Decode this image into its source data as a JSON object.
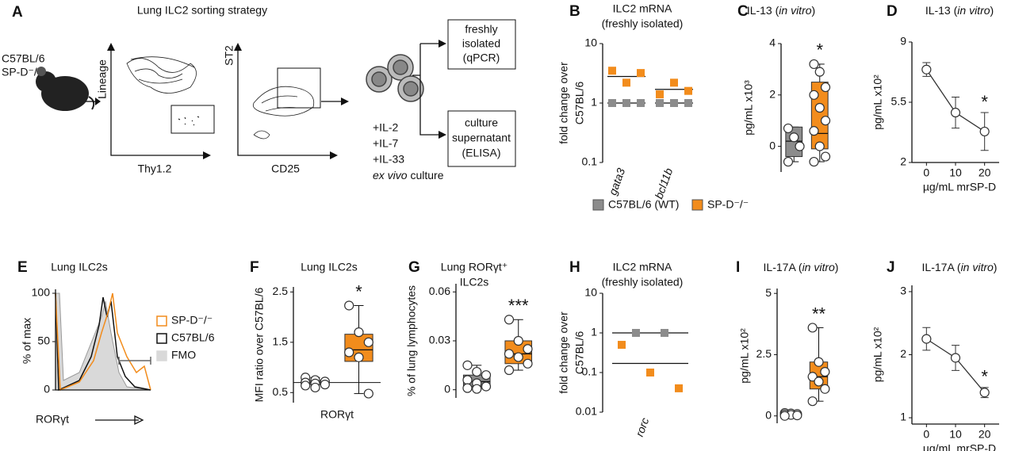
{
  "panel_a": {
    "label": "A",
    "title": "Lung ILC2 sorting strategy",
    "mouse": [
      "C57BL/6",
      "SP-D⁻/⁻"
    ],
    "plot1": {
      "y": "Lineage",
      "x": "Thy1.2"
    },
    "plot2": {
      "y": "ST2",
      "x": "CD25"
    },
    "culture": [
      "+IL-2",
      "+IL-7",
      "+IL-33"
    ],
    "culture_note": [
      "ex vivo",
      " culture"
    ],
    "box1": [
      "freshly",
      "isolated",
      "(qPCR)"
    ],
    "box2": [
      "culture",
      "supernatant",
      "(ELISA)"
    ]
  },
  "panel_e": {
    "label": "E",
    "title": "Lung ILC2s",
    "ylabel": "% of max",
    "xlabel": "RORγt",
    "yticks": [
      0,
      50,
      100
    ],
    "legend": [
      {
        "name": "SP-D⁻/⁻",
        "color": "#f28c1c"
      },
      {
        "name": "C57BL/6",
        "color": "#111111"
      },
      {
        "name": "FMO",
        "color": "#d9d9d9"
      }
    ]
  },
  "chart_data": [
    {
      "type": "dot",
      "label": "B",
      "title": [
        "ILC2 mRNA",
        "(freshly isolated)"
      ],
      "ylabel": [
        "fold change over",
        "C57BL/6"
      ],
      "log": true,
      "ylim": [
        0.1,
        10
      ],
      "yticks": [
        0.1,
        1,
        10
      ],
      "categories": [
        "gata3",
        "bcl11b"
      ],
      "series": [
        {
          "name": "C57BL/6 (WT)",
          "color": "#8c8c8c",
          "values": [
            [
              1,
              1,
              1
            ],
            [
              1,
              1,
              1
            ]
          ],
          "means": [
            1,
            1
          ]
        },
        {
          "name": "SP-D⁻/⁻",
          "color": "#f28c1c",
          "values": [
            [
              3.5,
              2.2,
              3.2
            ],
            [
              1.4,
              2.2,
              1.6
            ]
          ],
          "means": [
            2.8,
            1.7
          ]
        }
      ]
    },
    {
      "type": "box",
      "label": "C",
      "title_parts": [
        "IL-13 (",
        "in vitro",
        ")"
      ],
      "ylabel": "pg/mL x10³",
      "ylim": [
        -1,
        4
      ],
      "yticks": [
        0,
        2,
        4
      ],
      "series": [
        {
          "color": "#8c8c8c",
          "box": [
            -0.6,
            -0.4,
            0.2,
            0.75,
            0.75
          ],
          "points": [
            0.7,
            0.35,
            0.0,
            -0.6
          ]
        },
        {
          "color": "#f28c1c",
          "box": [
            -0.6,
            -0.1,
            0.5,
            2.5,
            3.2
          ],
          "points": [
            3.2,
            2.9,
            2.3,
            2.0,
            1.5,
            1.0,
            0.6,
            0.0,
            -0.4,
            -0.6
          ],
          "annotation": "*"
        }
      ]
    },
    {
      "type": "line",
      "label": "D",
      "title_parts": [
        "IL-13 (",
        "in vitro",
        ")"
      ],
      "ylabel": "pg/mL x10²",
      "xlabel": "µg/mL  mrSP-D",
      "xlim": [
        -5,
        25
      ],
      "x": [
        0,
        10,
        20
      ],
      "xticks": [
        0,
        10,
        20
      ],
      "ylim": [
        2,
        9
      ],
      "yticks": [
        2,
        5.5,
        9
      ],
      "values": [
        7.4,
        4.9,
        3.8
      ],
      "errors": [
        0.4,
        0.9,
        1.1
      ],
      "annotations": [
        null,
        null,
        "*"
      ]
    },
    {
      "type": "box",
      "label": "F",
      "title": [
        "Lung ILC2s"
      ],
      "ylabel": "MFI ratio over C57BL/6",
      "xlabel": "RORγt",
      "ylim": [
        0.3,
        2.6
      ],
      "yticks": [
        0.5,
        1.5,
        2.5
      ],
      "reference": 0.7,
      "series": [
        {
          "color": "#8c8c8c",
          "box": [
            0.6,
            0.66,
            0.7,
            0.74,
            0.8
          ],
          "points": [
            0.8,
            0.75,
            0.72,
            0.7,
            0.68,
            0.66,
            0.64,
            0.6
          ]
        },
        {
          "color": "#f28c1c",
          "box": [
            0.48,
            1.12,
            1.35,
            1.66,
            2.23
          ],
          "points": [
            2.23,
            1.7,
            1.5,
            1.3,
            1.2,
            0.48
          ],
          "annotation": "*"
        }
      ]
    },
    {
      "type": "box",
      "label": "G",
      "title": [
        "Lung RORγt⁺",
        "ILC2s"
      ],
      "ylabel": "% of lung lymphocytes",
      "ylim": [
        -0.005,
        0.065
      ],
      "yticks": [
        0,
        0.03,
        0.06
      ],
      "series": [
        {
          "color": "#8c8c8c",
          "box": [
            0.0005,
            0.002,
            0.005,
            0.009,
            0.015
          ],
          "points": [
            0.015,
            0.011,
            0.009,
            0.006,
            0.004,
            0.002,
            0.001,
            0.0005
          ]
        },
        {
          "color": "#f28c1c",
          "box": [
            0.012,
            0.016,
            0.022,
            0.03,
            0.043
          ],
          "points": [
            0.043,
            0.03,
            0.025,
            0.022,
            0.02,
            0.016,
            0.012
          ],
          "annotation": "***"
        }
      ]
    },
    {
      "type": "dot",
      "label": "H",
      "title": [
        "ILC2 mRNA",
        "(freshly isolated)"
      ],
      "ylabel": [
        "fold change over",
        "C57BL/6"
      ],
      "log": true,
      "ylim": [
        0.01,
        10
      ],
      "yticks": [
        0.01,
        0.1,
        1,
        10
      ],
      "categories": [
        "rorc"
      ],
      "series": [
        {
          "color": "#8c8c8c",
          "values": [
            [
              1,
              1
            ]
          ],
          "means": [
            1
          ]
        },
        {
          "color": "#f28c1c",
          "values": [
            [
              0.5,
              0.1,
              0.04
            ]
          ],
          "means": [
            0.17
          ]
        }
      ]
    },
    {
      "type": "box",
      "label": "I",
      "title_parts": [
        "IL-17A (",
        "in vitro",
        ")"
      ],
      "ylabel": "pg/mL x10²",
      "ylim": [
        -0.3,
        5.2
      ],
      "yticks": [
        0,
        2.5,
        5
      ],
      "series": [
        {
          "color": "#8c8c8c",
          "box": [
            0.0,
            0.02,
            0.05,
            0.08,
            0.12
          ],
          "points": [
            0.12,
            0.1,
            0.08,
            0.06,
            0.04,
            0.02,
            0.0
          ]
        },
        {
          "color": "#f28c1c",
          "box": [
            0.6,
            1.1,
            1.6,
            2.2,
            3.6
          ],
          "points": [
            3.6,
            2.2,
            1.8,
            1.6,
            1.4,
            1.1,
            0.6
          ],
          "annotation": "**"
        }
      ]
    },
    {
      "type": "line",
      "label": "J",
      "title_parts": [
        "IL-17A (",
        "in vitro",
        ")"
      ],
      "ylabel": "pg/mL x10²",
      "xlabel": "µg/mL  mrSP-D",
      "xlim": [
        -5,
        25
      ],
      "x": [
        0,
        10,
        20
      ],
      "xticks": [
        0,
        10,
        20
      ],
      "ylim": [
        0.9,
        3.1
      ],
      "yticks": [
        1,
        2,
        3
      ],
      "values": [
        2.25,
        1.95,
        1.4
      ],
      "errors": [
        0.18,
        0.2,
        0.08
      ],
      "annotations": [
        null,
        null,
        "*"
      ]
    }
  ]
}
